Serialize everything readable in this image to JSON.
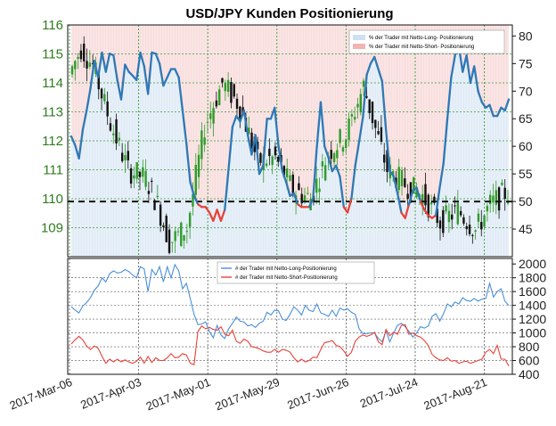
{
  "title": "USD/JPY Kunden Positionierung",
  "colors": {
    "long": "#2f78b5",
    "short": "#e8433a",
    "candle_up": "#2f9c2a",
    "candle_down": "#111111",
    "grid": "#3a9a3a",
    "long_fill": "#dbe8f5",
    "short_fill": "#f7d9d9"
  },
  "chart_data": [
    {
      "type": "candlestick+line",
      "name": "price_and_percent",
      "x_ticks": [
        "2017-Mar-06",
        "2017-Apr-03",
        "2017-May-01",
        "2017-May-29",
        "2017-Jun-26",
        "2017-Jul-24",
        "2017-Aug-21"
      ],
      "price_axis": {
        "side": "left",
        "ylim": [
          108,
          116
        ],
        "ticks": [
          109,
          110,
          111,
          112,
          113,
          114,
          115,
          116
        ]
      },
      "percent_axis": {
        "side": "right",
        "ylim": [
          40,
          82
        ],
        "ticks": [
          45,
          50,
          55,
          60,
          65,
          70,
          75,
          80
        ]
      },
      "reference_line": 50,
      "legend": [
        {
          "label": "% der Trader mit Netto-Long- Positionierung",
          "color": "#dbe8f5"
        },
        {
          "label": "% der Trader mit Netto-Short- Positionierung",
          "color": "#f7d9d9"
        }
      ],
      "percent_long": [
        61.8,
        60.2,
        57.8,
        63,
        66.5,
        70.5,
        75.5,
        72.5,
        77,
        73.5,
        76.8,
        76.5,
        72,
        68.5,
        74.8,
        73.5,
        72.8,
        72,
        77,
        74.5,
        69.5,
        77,
        76.8,
        75,
        71,
        72.5,
        74,
        74,
        72.5,
        66.5,
        60.5,
        53.5,
        51,
        49.5,
        49,
        49,
        48,
        46.5,
        48.5,
        46.5,
        48.5,
        56,
        63.5,
        65.5,
        64.5,
        66.5,
        62,
        58.5,
        62,
        55,
        56.5,
        65,
        65,
        67,
        60,
        55.5,
        53.5,
        51,
        51.5,
        49.5,
        49,
        49,
        49,
        50.5,
        60,
        68,
        60,
        58,
        55.5,
        56.5,
        54.5,
        49,
        48,
        50.5,
        56.5,
        60.8,
        65.3,
        73,
        75,
        76.2,
        74,
        71.8,
        63,
        55.5,
        54.6,
        51.5,
        48,
        47,
        49.5,
        52,
        52.5,
        50,
        48.5,
        47.5,
        47,
        47.5,
        52.5,
        57,
        65,
        72.5,
        76.5,
        78,
        73.5,
        76.5,
        71.5,
        74.5,
        70,
        68,
        67,
        67.5,
        65.5,
        65.5,
        67,
        66.5,
        68.5
      ],
      "price_ohlc_summary": "daily candlesticks from ~114.3 in early March, peaking near 115.4, falling to ~108.2 mid-April, rising to ~114.4 early May, ranging 109-112 through June, rising to ~114.3 early July, then declining to ~108.6 late August, ending near 110.0"
    },
    {
      "type": "line",
      "name": "trader_counts",
      "y_axis": {
        "side": "right",
        "ylim": [
          400,
          2080
        ],
        "ticks": [
          400,
          600,
          800,
          1000,
          1200,
          1400,
          1600,
          1800,
          2000
        ]
      },
      "legend": [
        {
          "label": "# der Trader mit Netto-Long-Positionierung",
          "color": "#4a90d9"
        },
        {
          "label": "# der Trader mit Netto-Short-Positionierung",
          "color": "#e8433a"
        }
      ],
      "series": [
        {
          "name": "# der Trader mit Netto-Long-Positionierung",
          "values": [
            1380,
            1330,
            1290,
            1390,
            1440,
            1510,
            1620,
            1680,
            1800,
            1740,
            1860,
            1900,
            1870,
            1880,
            1920,
            1890,
            1840,
            1800,
            1960,
            1930,
            1600,
            1920,
            1840,
            1960,
            1740,
            1960,
            1800,
            1990,
            1900,
            1640,
            1720,
            1500,
            1270,
            1120,
            1130,
            1160,
            1020,
            930,
            1110,
            970,
            920,
            1060,
            1140,
            1230,
            1170,
            1160,
            1100,
            1120,
            1080,
            1140,
            1170,
            1300,
            1260,
            1330,
            1320,
            1200,
            1180,
            1270,
            1380,
            1330,
            1260,
            1400,
            1330,
            1310,
            1420,
            1290,
            1270,
            1240,
            1330,
            1240,
            1360,
            1330,
            1350,
            1300,
            1270,
            1060,
            990,
            990,
            1000,
            1000,
            920,
            870,
            1030,
            870,
            1000,
            1110,
            1140,
            1090,
            1020,
            940,
            1000,
            1090,
            1070,
            1100,
            1240,
            1280,
            1170,
            1280,
            1420,
            1380,
            1450,
            1420,
            1510,
            1470,
            1460,
            1500,
            1460,
            1490,
            1500,
            1720,
            1520,
            1600,
            1640,
            1460,
            1400
          ]
        },
        {
          "name": "# der Trader mit Netto-Short-Positionierung",
          "values": [
            840,
            900,
            950,
            900,
            810,
            760,
            810,
            780,
            660,
            560,
            620,
            580,
            620,
            580,
            610,
            580,
            560,
            590,
            650,
            560,
            660,
            570,
            640,
            600,
            600,
            640,
            700,
            640,
            650,
            700,
            680,
            560,
            540,
            1020,
            1100,
            1060,
            1080,
            1050,
            1040,
            1090,
            980,
            960,
            1040,
            880,
            850,
            910,
            880,
            800,
            790,
            770,
            740,
            720,
            720,
            760,
            720,
            760,
            750,
            720,
            640,
            580,
            620,
            580,
            600,
            650,
            640,
            760,
            860,
            870,
            890,
            820,
            800,
            740,
            660,
            720,
            880,
            940,
            970,
            950,
            970,
            1010,
            870,
            830,
            1050,
            960,
            1010,
            980,
            1110,
            1120,
            980,
            1000,
            960,
            940,
            890,
            820,
            690,
            640,
            610,
            600,
            640,
            590,
            600,
            560,
            580,
            590,
            560,
            580,
            600,
            620,
            720,
            760,
            700,
            820,
            620,
            620,
            520
          ]
        }
      ]
    }
  ]
}
